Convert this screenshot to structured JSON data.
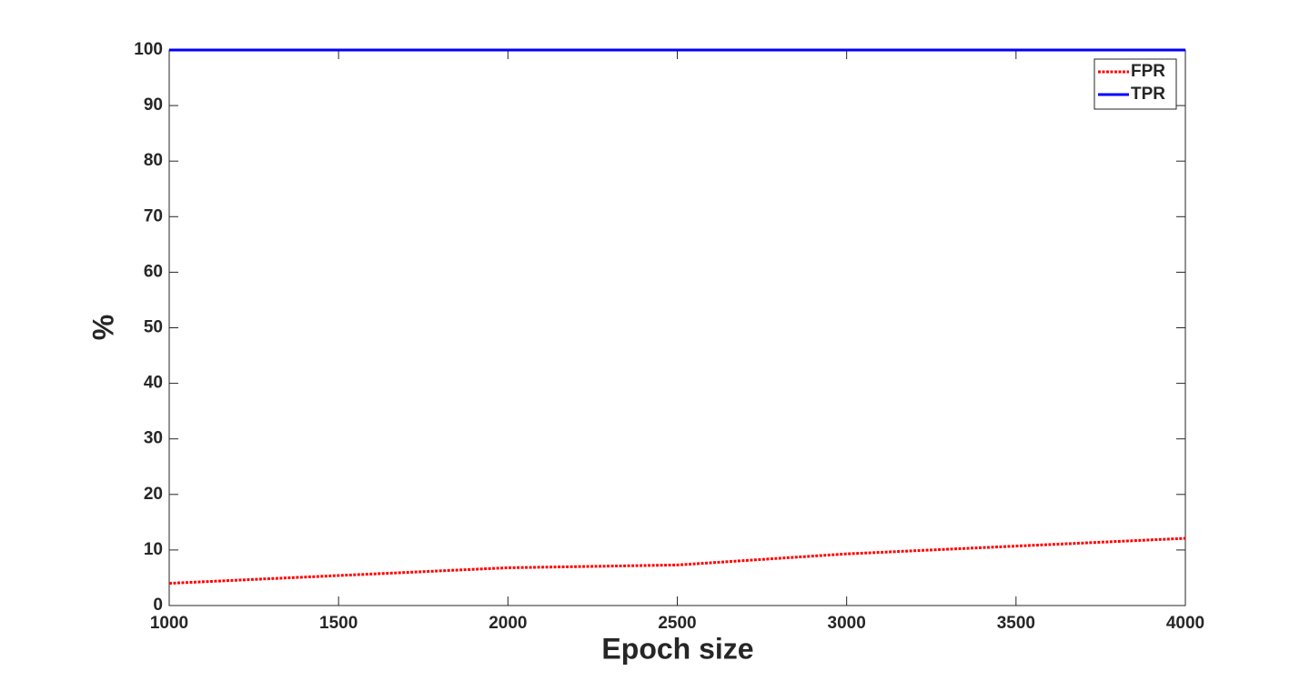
{
  "chart_data": {
    "type": "line",
    "x": [
      1000,
      1500,
      2000,
      2500,
      3000,
      3500,
      4000
    ],
    "series": [
      {
        "name": "FPR",
        "color": "#ff0000",
        "dash": "dotted",
        "values": [
          4.0,
          5.4,
          6.8,
          7.3,
          9.3,
          10.7,
          12.1
        ]
      },
      {
        "name": "TPR",
        "color": "#0000ff",
        "dash": "solid",
        "values": [
          100,
          100,
          100,
          100,
          100,
          100,
          100
        ]
      }
    ],
    "xlabel": "Epoch size",
    "ylabel": "%",
    "xlim": [
      1000,
      4000
    ],
    "xticks": [
      1000,
      1500,
      2000,
      2500,
      3000,
      3500,
      4000
    ],
    "ylim": [
      0,
      100
    ],
    "yticks": [
      0,
      10,
      20,
      30,
      40,
      50,
      60,
      70,
      80,
      90,
      100
    ],
    "grid": false,
    "legend": "top-right"
  }
}
